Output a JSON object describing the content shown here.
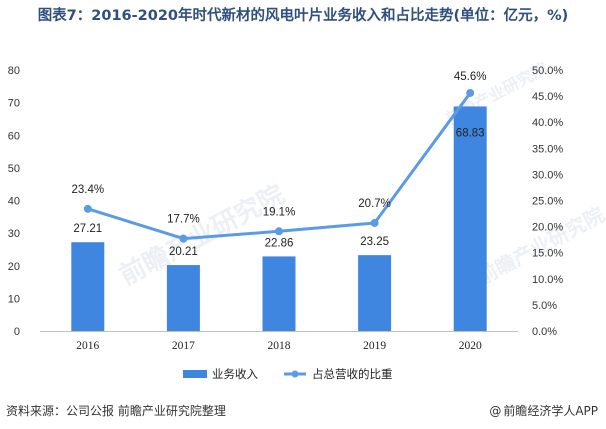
{
  "title": "图表7：2016-2020年时代新材的风电叶片业务收入和占比走势(单位：亿元，%)",
  "watermark": "前瞻产业研究院",
  "footer": {
    "source": "资料来源：公司公报 前瞻产业研究院整理",
    "brand_at": "@",
    "brand": "前瞻经济学人APP"
  },
  "colors": {
    "bar": "#3f86e0",
    "line": "#5b9be6",
    "title": "#2f4f7f"
  },
  "chart_data": {
    "type": "bar+line",
    "categories": [
      "2016",
      "2017",
      "2018",
      "2019",
      "2020"
    ],
    "series": [
      {
        "name": "业务收入",
        "type": "bar",
        "axis": "left",
        "values": [
          27.21,
          20.21,
          22.86,
          23.25,
          68.83
        ],
        "labels": [
          "27.21",
          "20.21",
          "22.86",
          "23.25",
          "68.83"
        ]
      },
      {
        "name": "占总营收的比重",
        "type": "line",
        "axis": "right",
        "values": [
          23.4,
          17.7,
          19.1,
          20.7,
          45.6
        ],
        "labels": [
          "23.4%",
          "17.7%",
          "19.1%",
          "20.7%",
          "45.6%"
        ]
      }
    ],
    "y_left": {
      "min": 0,
      "max": 80,
      "ticks": [
        "0",
        "10",
        "20",
        "30",
        "40",
        "50",
        "60",
        "70",
        "80"
      ]
    },
    "y_right": {
      "min": 0,
      "max": 50,
      "ticks": [
        "0.0%",
        "5.0%",
        "10.0%",
        "15.0%",
        "20.0%",
        "25.0%",
        "30.0%",
        "35.0%",
        "40.0%",
        "45.0%",
        "50.0%"
      ]
    },
    "legend_position": "bottom",
    "grid": false
  }
}
